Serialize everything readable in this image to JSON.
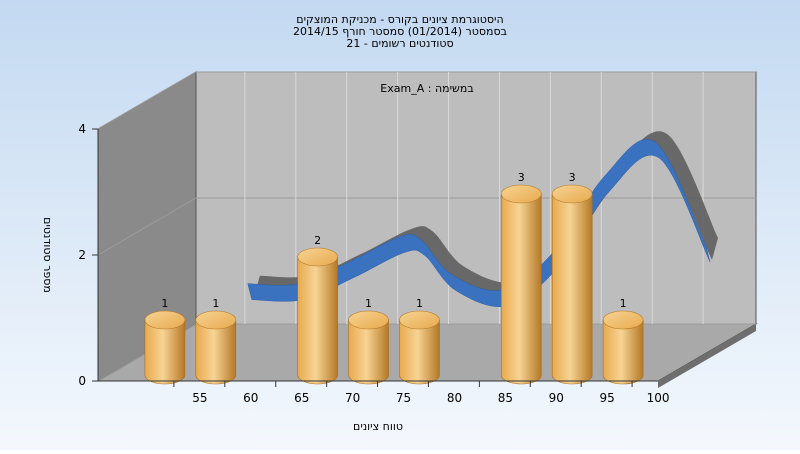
{
  "chart_data": {
    "type": "bar",
    "title_lines": [
      "היסטוגרמת ציונים בקורס - מכניקת המוצקים",
      "בסמסטר  (01/2014)  סמסטר חורף 2014/15",
      "סטודנטים רשומים - 21"
    ],
    "annotation": "Exam_A : במשימה",
    "xlabel": "טווח ציונים",
    "ylabel": "מספר סטודנטים",
    "x_ticks": [
      "55",
      "60",
      "65",
      "70",
      "75",
      "80",
      "85",
      "90",
      "95",
      "100"
    ],
    "y_ticks": [
      "0",
      "2",
      "4"
    ],
    "ylim": [
      0,
      4
    ],
    "grid": true,
    "bars": [
      {
        "x": 55,
        "value": 1,
        "label": "1"
      },
      {
        "x": 60,
        "value": 1,
        "label": "1"
      },
      {
        "x": 70,
        "value": 2,
        "label": "2"
      },
      {
        "x": 75,
        "value": 1,
        "label": "1"
      },
      {
        "x": 80,
        "value": 1,
        "label": "1"
      },
      {
        "x": 90,
        "value": 3,
        "label": "3"
      },
      {
        "x": 95,
        "value": 3,
        "label": "3"
      },
      {
        "x": 100,
        "value": 1,
        "label": "1"
      }
    ],
    "trend": [
      {
        "x": 60,
        "value": 1.1
      },
      {
        "x": 65,
        "value": 1.1
      },
      {
        "x": 70,
        "value": 1.45
      },
      {
        "x": 75,
        "value": 1.85
      },
      {
        "x": 77,
        "value": 1.8
      },
      {
        "x": 80,
        "value": 1.25
      },
      {
        "x": 85,
        "value": 1.0
      },
      {
        "x": 90,
        "value": 1.6
      },
      {
        "x": 95,
        "value": 2.8
      },
      {
        "x": 100,
        "value": 3.35
      },
      {
        "x": 105,
        "value": 1.7
      }
    ],
    "colors": {
      "background_top": "#c3d9f1",
      "background_bottom": "#f4f8fd",
      "back_wall": "#bdbdbd",
      "side_wall": "#8a8a8a",
      "floor": "#a9a9a9",
      "bar_light": "#f7d494",
      "bar_mid": "#e8a94e",
      "bar_dark": "#b47826",
      "ribbon_front": "#3a72c0",
      "ribbon_back": "#5e5e5e"
    }
  }
}
